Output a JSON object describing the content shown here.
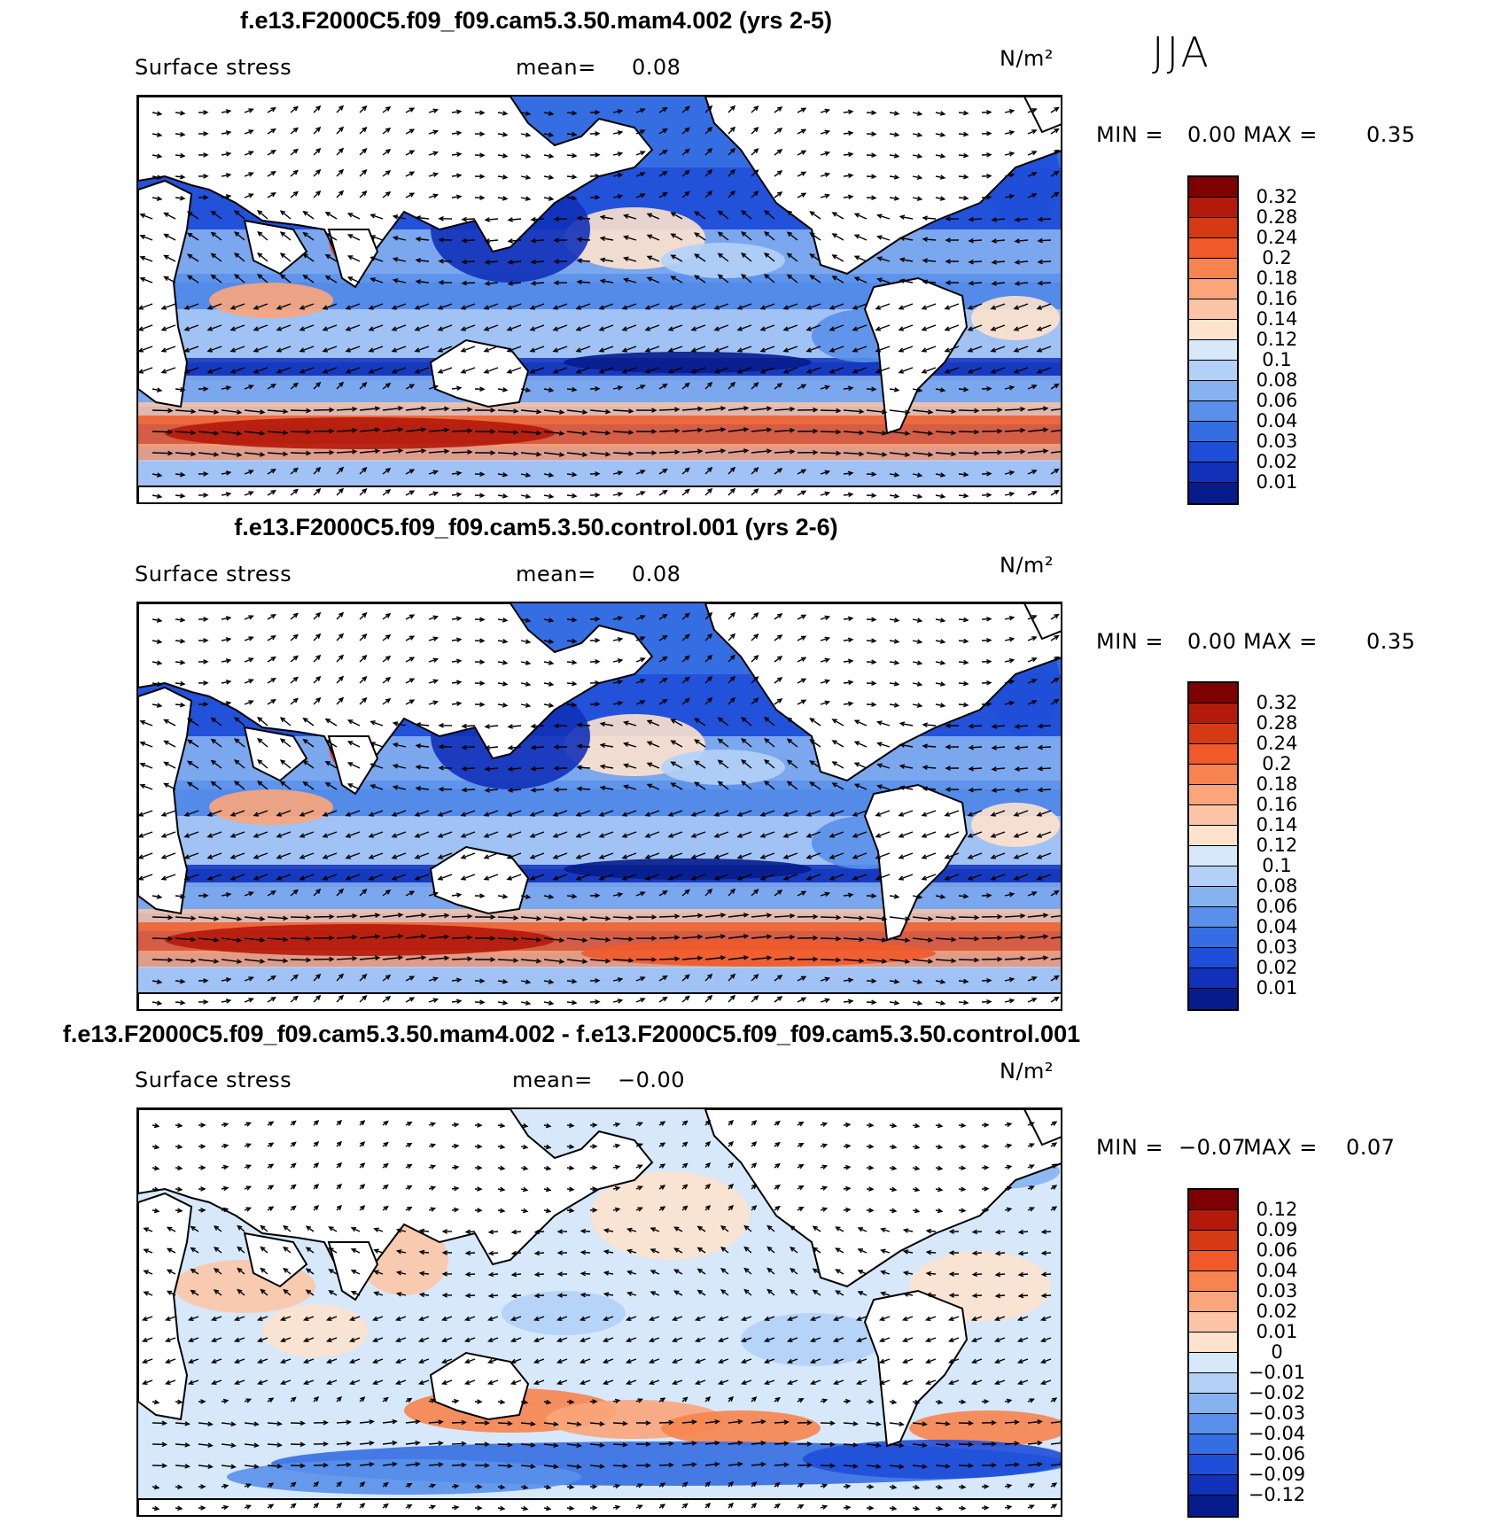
{
  "season": "JJA",
  "panels": [
    {
      "title": "f.e13.F2000C5.f09_f09.cam5.3.50.mam4.002 (yrs 2-5)",
      "variable": "Surface stress",
      "mean_label": "mean=",
      "mean_value": "0.08",
      "units": "N/m²",
      "min_label": "MIN =",
      "min_value": "0.00",
      "max_label": "MAX =",
      "max_value": "0.35",
      "colorbar_labels": [
        "0.32",
        "0.28",
        "0.24",
        "0.2",
        "0.18",
        "0.16",
        "0.14",
        "0.12",
        "0.1",
        "0.08",
        "0.06",
        "0.04",
        "0.03",
        "0.02",
        "0.01"
      ],
      "colors": [
        "#7f0000",
        "#b41a0a",
        "#d63a14",
        "#f05a2a",
        "#f7844e",
        "#fba57a",
        "#fcc6a6",
        "#fde2cd",
        "#d6e8fa",
        "#b3d1f7",
        "#86b2f0",
        "#5990ea",
        "#356ee2",
        "#1f4ed8",
        "#1131b8",
        "#071c8c"
      ]
    },
    {
      "title": "f.e13.F2000C5.f09_f09.cam5.3.50.control.001 (yrs 2-6)",
      "variable": "Surface stress",
      "mean_label": "mean=",
      "mean_value": "0.08",
      "units": "N/m²",
      "min_label": "MIN =",
      "min_value": "0.00",
      "max_label": "MAX =",
      "max_value": "0.35",
      "colorbar_labels": [
        "0.32",
        "0.28",
        "0.24",
        "0.2",
        "0.18",
        "0.16",
        "0.14",
        "0.12",
        "0.1",
        "0.08",
        "0.06",
        "0.04",
        "0.03",
        "0.02",
        "0.01"
      ],
      "colors": [
        "#7f0000",
        "#b41a0a",
        "#d63a14",
        "#f05a2a",
        "#f7844e",
        "#fba57a",
        "#fcc6a6",
        "#fde2cd",
        "#d6e8fa",
        "#b3d1f7",
        "#86b2f0",
        "#5990ea",
        "#356ee2",
        "#1f4ed8",
        "#1131b8",
        "#071c8c"
      ]
    },
    {
      "title": "f.e13.F2000C5.f09_f09.cam5.3.50.mam4.002 - f.e13.F2000C5.f09_f09.cam5.3.50.control.001",
      "variable": "Surface stress",
      "mean_label": "mean=",
      "mean_value": "−0.00",
      "units": "N/m²",
      "min_label": "MIN =",
      "min_value": "−0.07",
      "max_label": "MAX =",
      "max_value": "0.07",
      "colorbar_labels": [
        "0.12",
        "0.09",
        "0.06",
        "0.04",
        "0.03",
        "0.02",
        "0.01",
        "0",
        "−0.01",
        "−0.02",
        "−0.03",
        "−0.04",
        "−0.06",
        "−0.09",
        "−0.12"
      ],
      "colors": [
        "#7f0000",
        "#b41a0a",
        "#d63a14",
        "#f05a2a",
        "#f7844e",
        "#fba57a",
        "#fcc6a6",
        "#fde2cd",
        "#d6e8fa",
        "#b3d1f7",
        "#86b2f0",
        "#5990ea",
        "#356ee2",
        "#1f4ed8",
        "#1131b8",
        "#071c8c"
      ]
    }
  ]
}
